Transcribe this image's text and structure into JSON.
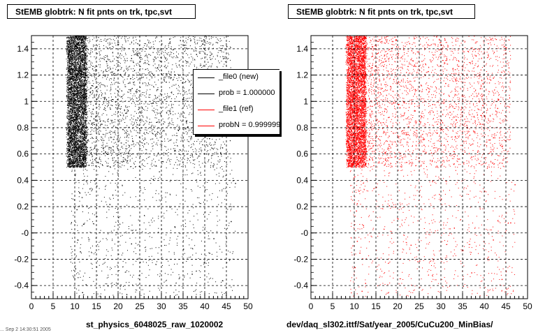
{
  "panels": [
    {
      "title": "StEMB globtrk: N fit pnts on trk, tpc,svt",
      "xlabel": "st_physics_6048025_raw_1020002",
      "color": "#000000"
    },
    {
      "title": "StEMB globtrk: N fit pnts on trk, tpc,svt",
      "xlabel": "dev/daq_sl302.ittf/Sat/year_2005/CuCu200_MinBias/",
      "color": "#ff0000"
    }
  ],
  "legend": {
    "entries": [
      {
        "label": "_file0 (new)",
        "color": "#000000"
      },
      {
        "label": "prob = 1.000000",
        "color": "#000000"
      },
      {
        "label": "_file1 (ref)",
        "color": "#ff0000"
      },
      {
        "label": "probN = 0.999999",
        "color": "#ff0000"
      }
    ]
  },
  "footer_stamp": "... Sep 2 14:30:51 2005",
  "chart_data": [
    {
      "type": "scatter",
      "title": "StEMB globtrk: N fit pnts on trk, tpc,svt",
      "xlabel": "st_physics_6048025_raw_1020002",
      "ylabel": "",
      "xlim": [
        0,
        50
      ],
      "ylim": [
        -0.5,
        1.5
      ],
      "xticks": [
        0,
        5,
        10,
        15,
        20,
        25,
        30,
        35,
        40,
        45,
        50
      ],
      "yticks": [
        -0.4,
        -0.2,
        0,
        0.2,
        0.4,
        0.6,
        0.8,
        1,
        1.2,
        1.4
      ],
      "ytick_labels": [
        "-0.4",
        "-0.2",
        "-0",
        "0.2",
        "0.4",
        "0.6",
        "0.8",
        "1",
        "1.2",
        "1.4"
      ],
      "grid": true,
      "series": [
        {
          "color": "#000000",
          "points": [
            [
              9.5,
              1.45
            ],
            [
              10,
              1.32
            ],
            [
              10.5,
              1.21
            ],
            [
              9.8,
              1.05
            ],
            [
              11,
              0.95
            ],
            [
              10.2,
              0.88
            ],
            [
              9.6,
              0.74
            ],
            [
              10.8,
              0.66
            ],
            [
              9.9,
              0.56
            ],
            [
              11.5,
              1.38
            ],
            [
              12,
              1.12
            ],
            [
              12.5,
              0.92
            ],
            [
              13,
              0.71
            ],
            [
              11.8,
              0.58
            ],
            [
              14,
              1.25
            ],
            [
              15,
              1.02
            ],
            [
              16,
              0.83
            ],
            [
              17,
              0.62
            ],
            [
              18,
              1.41
            ],
            [
              19,
              1.18
            ],
            [
              20,
              0.97
            ],
            [
              21,
              0.79
            ],
            [
              22,
              0.55
            ],
            [
              23,
              1.33
            ],
            [
              24,
              1.08
            ],
            [
              25,
              0.86
            ],
            [
              26,
              0.68
            ],
            [
              27,
              1.22
            ],
            [
              28,
              0.99
            ],
            [
              29,
              0.77
            ],
            [
              30,
              1.44
            ],
            [
              31,
              1.15
            ],
            [
              32,
              0.91
            ],
            [
              33,
              0.63
            ],
            [
              34,
              1.28
            ],
            [
              35,
              1.03
            ],
            [
              36,
              0.81
            ],
            [
              37,
              0.59
            ],
            [
              38,
              1.36
            ],
            [
              39,
              1.11
            ],
            [
              40,
              0.88
            ],
            [
              41,
              0.72
            ],
            [
              42,
              1.19
            ],
            [
              43,
              0.96
            ],
            [
              44,
              0.65
            ],
            [
              45,
              1.42
            ],
            [
              10,
              0.44
            ],
            [
              11,
              0.31
            ],
            [
              10.4,
              0.18
            ],
            [
              12,
              0.07
            ],
            [
              10.6,
              -0.05
            ],
            [
              11.2,
              -0.14
            ],
            [
              10.1,
              -0.27
            ],
            [
              12.5,
              -0.39
            ],
            [
              11.7,
              -0.45
            ],
            [
              15,
              0.36
            ],
            [
              18,
              0.22
            ],
            [
              20,
              0.12
            ],
            [
              23,
              -0.08
            ],
            [
              25,
              -0.22
            ],
            [
              28,
              0.41
            ],
            [
              30,
              0.27
            ],
            [
              33,
              0.05
            ],
            [
              35,
              -0.12
            ],
            [
              37,
              -0.31
            ],
            [
              40,
              0.33
            ],
            [
              42,
              -0.04
            ],
            [
              44,
              -0.36
            ],
            [
              46,
              0.09
            ],
            [
              47,
              0.38
            ]
          ]
        }
      ]
    },
    {
      "type": "scatter",
      "title": "StEMB globtrk: N fit pnts on trk, tpc,svt",
      "xlabel": "dev/daq_sl302.ittf/Sat/year_2005/CuCu200_MinBias/",
      "ylabel": "",
      "xlim": [
        0,
        50
      ],
      "ylim": [
        -0.5,
        1.5
      ],
      "xticks": [
        0,
        5,
        10,
        15,
        20,
        25,
        30,
        35,
        40,
        45,
        50
      ],
      "yticks": [
        -0.4,
        -0.2,
        0,
        0.2,
        0.4,
        0.6,
        0.8,
        1,
        1.2,
        1.4
      ],
      "ytick_labels": [
        "-0.4",
        "-0.2",
        "-0",
        "0.2",
        "0.4",
        "0.6",
        "0.8",
        "1",
        "1.2",
        "1.4"
      ],
      "grid": true,
      "series": [
        {
          "color": "#ff0000",
          "points": [
            [
              9.5,
              1.44
            ],
            [
              10,
              1.31
            ],
            [
              10.5,
              1.2
            ],
            [
              9.8,
              1.06
            ],
            [
              11,
              0.94
            ],
            [
              10.2,
              0.87
            ],
            [
              9.6,
              0.75
            ],
            [
              10.8,
              0.65
            ],
            [
              9.9,
              0.55
            ],
            [
              11.5,
              1.37
            ],
            [
              12,
              1.11
            ],
            [
              12.5,
              0.93
            ],
            [
              13,
              0.7
            ],
            [
              11.8,
              0.57
            ],
            [
              14,
              1.26
            ],
            [
              15,
              1.01
            ],
            [
              16,
              0.84
            ],
            [
              17,
              0.61
            ],
            [
              18,
              1.4
            ],
            [
              19,
              1.17
            ],
            [
              20,
              0.98
            ],
            [
              21,
              0.78
            ],
            [
              22,
              0.54
            ],
            [
              23,
              1.32
            ],
            [
              24,
              1.09
            ],
            [
              25,
              0.85
            ],
            [
              26,
              0.67
            ],
            [
              27,
              1.23
            ],
            [
              28,
              0.98
            ],
            [
              29,
              0.76
            ],
            [
              30,
              1.43
            ],
            [
              31,
              1.14
            ],
            [
              32,
              0.92
            ],
            [
              33,
              0.62
            ],
            [
              34,
              1.27
            ],
            [
              35,
              1.04
            ],
            [
              36,
              0.8
            ],
            [
              37,
              0.58
            ],
            [
              38,
              1.35
            ],
            [
              39,
              1.1
            ],
            [
              40,
              0.89
            ],
            [
              41,
              0.71
            ],
            [
              42,
              1.18
            ],
            [
              43,
              0.95
            ],
            [
              44,
              0.66
            ],
            [
              45,
              1.41
            ],
            [
              10,
              0.43
            ],
            [
              11,
              0.32
            ],
            [
              10.4,
              0.17
            ],
            [
              12,
              0.06
            ],
            [
              10.6,
              -0.06
            ],
            [
              11.2,
              -0.15
            ],
            [
              10.1,
              -0.26
            ],
            [
              12.5,
              -0.38
            ],
            [
              11.7,
              -0.44
            ],
            [
              15,
              0.35
            ],
            [
              18,
              0.21
            ],
            [
              20,
              0.11
            ],
            [
              23,
              -0.09
            ],
            [
              25,
              -0.21
            ],
            [
              28,
              0.4
            ],
            [
              30,
              0.26
            ],
            [
              33,
              0.04
            ],
            [
              35,
              -0.13
            ],
            [
              37,
              -0.3
            ],
            [
              40,
              0.32
            ],
            [
              42,
              -0.05
            ],
            [
              44,
              -0.35
            ],
            [
              46,
              0.08
            ],
            [
              47,
              0.37
            ]
          ]
        }
      ]
    }
  ]
}
